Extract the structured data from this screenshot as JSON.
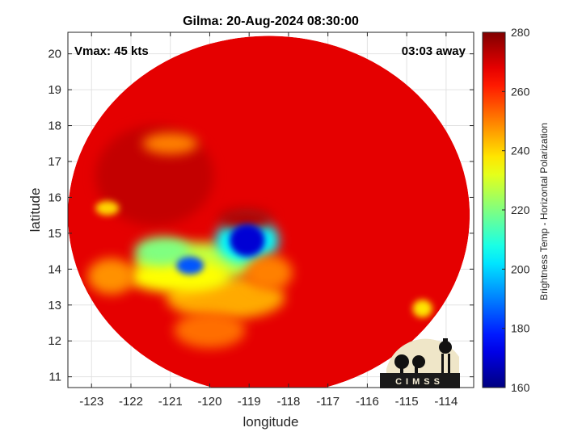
{
  "chart_data": {
    "type": "heatmap",
    "title": "Gilma: 20-Aug-2024 08:30:00",
    "xlabel": "longitude",
    "ylabel": "latitude",
    "xlim": [
      -123.6,
      -113.3
    ],
    "ylim": [
      10.7,
      20.6
    ],
    "xticks": [
      -123,
      -122,
      -121,
      -120,
      -119,
      -118,
      -117,
      -116,
      -115,
      -114
    ],
    "yticks": [
      11,
      12,
      13,
      14,
      15,
      16,
      17,
      18,
      19,
      20
    ],
    "grid": true,
    "annotations": {
      "vmax": "Vmax: 45 kts",
      "away": "03:03 away"
    },
    "colorbar": {
      "label": "Brightness Temp - Horizontal Polarization",
      "limits": [
        160,
        280
      ],
      "ticks": [
        160,
        180,
        200,
        220,
        240,
        260,
        280
      ],
      "colormap": "jet"
    },
    "swath": {
      "center": [
        -118.5,
        15.5
      ],
      "radius_lon": 5.1,
      "radius_lat": 5.0
    },
    "background_value": 268,
    "features": [
      {
        "lon": -119.05,
        "lat": 14.8,
        "rx": 0.45,
        "ry": 0.45,
        "value": 170
      },
      {
        "lon": -119.05,
        "lat": 14.8,
        "rx": 0.8,
        "ry": 0.65,
        "value": 205
      },
      {
        "lon": -120.5,
        "lat": 14.1,
        "rx": 0.35,
        "ry": 0.25,
        "value": 185
      },
      {
        "lon": -120.3,
        "lat": 14.2,
        "rx": 1.6,
        "ry": 0.55,
        "value": 228
      },
      {
        "lon": -121.2,
        "lat": 14.5,
        "rx": 0.7,
        "ry": 0.4,
        "value": 220
      },
      {
        "lon": -120.8,
        "lat": 13.8,
        "rx": 1.3,
        "ry": 0.45,
        "value": 235
      },
      {
        "lon": -119.6,
        "lat": 13.2,
        "rx": 1.5,
        "ry": 0.6,
        "value": 245
      },
      {
        "lon": -120.0,
        "lat": 12.3,
        "rx": 0.9,
        "ry": 0.5,
        "value": 252
      },
      {
        "lon": -118.5,
        "lat": 13.9,
        "rx": 0.6,
        "ry": 0.5,
        "value": 250
      },
      {
        "lon": -122.5,
        "lat": 13.8,
        "rx": 0.6,
        "ry": 0.5,
        "value": 248
      },
      {
        "lon": -121.0,
        "lat": 17.5,
        "rx": 0.7,
        "ry": 0.3,
        "value": 250
      },
      {
        "lon": -122.6,
        "lat": 15.7,
        "rx": 0.3,
        "ry": 0.2,
        "value": 240
      },
      {
        "lon": -114.6,
        "lat": 12.9,
        "rx": 0.25,
        "ry": 0.25,
        "value": 238
      },
      {
        "lon": -119.1,
        "lat": 15.4,
        "rx": 0.7,
        "ry": 0.3,
        "value": 274
      },
      {
        "lon": -121.4,
        "lat": 16.6,
        "rx": 1.5,
        "ry": 1.4,
        "value": 272
      }
    ]
  },
  "logo": {
    "text": "CIMSS"
  }
}
